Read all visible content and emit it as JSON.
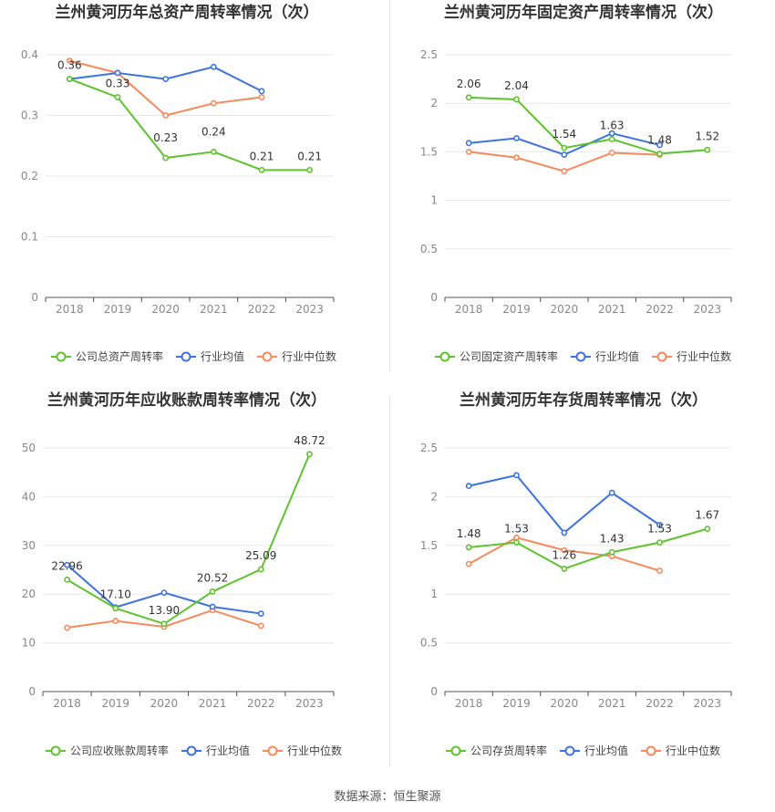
{
  "source_label": "数据来源：恒生聚源",
  "colors": {
    "company": "#5dc32e",
    "avg": "#3d73dd",
    "median": "#f58a5c",
    "grid": "#e8e8e8",
    "axis": "#555555"
  },
  "legend": {
    "avg": "行业均值",
    "median": "行业中位数"
  },
  "chart_data": [
    {
      "type": "line",
      "title": "兰州黄河历年总资产周转率情况（次）",
      "categories": [
        "2018",
        "2019",
        "2020",
        "2021",
        "2022",
        "2023"
      ],
      "ylim": [
        0,
        0.4
      ],
      "yticks": [
        "0",
        "0.1",
        "0.2",
        "0.3",
        "0.4"
      ],
      "series": [
        {
          "name": "公司总资产周转率",
          "values": [
            0.36,
            0.33,
            0.23,
            0.24,
            0.21,
            0.21
          ],
          "labels": [
            "0.36",
            "0.33",
            "0.23",
            "0.24",
            "0.21",
            "0.21"
          ]
        },
        {
          "name": "行业均值",
          "values": [
            0.36,
            0.37,
            0.36,
            0.38,
            0.34,
            null
          ]
        },
        {
          "name": "行业中位数",
          "values": [
            0.39,
            0.37,
            0.3,
            0.32,
            0.33,
            null
          ]
        }
      ],
      "legend_position": "bottom"
    },
    {
      "type": "line",
      "title": "兰州黄河历年固定资产周转率情况（次）",
      "categories": [
        "2018",
        "2019",
        "2020",
        "2021",
        "2022",
        "2023"
      ],
      "ylim": [
        0,
        2.5
      ],
      "yticks": [
        "0",
        "0.5",
        "1",
        "1.5",
        "2",
        "2.5"
      ],
      "series": [
        {
          "name": "公司固定资产周转率",
          "values": [
            2.06,
            2.04,
            1.54,
            1.63,
            1.48,
            1.52
          ],
          "labels": [
            "2.06",
            "2.04",
            "1.54",
            "1.63",
            "1.48",
            "1.52"
          ]
        },
        {
          "name": "行业均值",
          "values": [
            1.59,
            1.64,
            1.47,
            1.69,
            1.57,
            null
          ]
        },
        {
          "name": "行业中位数",
          "values": [
            1.5,
            1.44,
            1.3,
            1.49,
            1.47,
            null
          ]
        }
      ],
      "legend_position": "bottom"
    },
    {
      "type": "line",
      "title": "兰州黄河历年应收账款周转率情况（次）",
      "categories": [
        "2018",
        "2019",
        "2020",
        "2021",
        "2022",
        "2023"
      ],
      "ylim": [
        0,
        50
      ],
      "yticks": [
        "0",
        "10",
        "20",
        "30",
        "40",
        "50"
      ],
      "series": [
        {
          "name": "公司应收账款周转率",
          "values": [
            22.96,
            17.1,
            13.9,
            20.52,
            25.09,
            48.72
          ],
          "labels": [
            "22.96",
            "17.10",
            "13.90",
            "20.52",
            "25.09",
            "48.72"
          ]
        },
        {
          "name": "行业均值",
          "values": [
            26.0,
            17.3,
            20.3,
            17.4,
            16.0,
            null
          ]
        },
        {
          "name": "行业中位数",
          "values": [
            13.1,
            14.5,
            13.3,
            16.7,
            13.5,
            null
          ]
        }
      ],
      "legend_position": "bottom"
    },
    {
      "type": "line",
      "title": "兰州黄河历年存货周转率情况（次）",
      "categories": [
        "2018",
        "2019",
        "2020",
        "2021",
        "2022",
        "2023"
      ],
      "ylim": [
        0,
        2.5
      ],
      "yticks": [
        "0",
        "0.5",
        "1",
        "1.5",
        "2",
        "2.5"
      ],
      "series": [
        {
          "name": "公司存货周转率",
          "values": [
            1.48,
            1.53,
            1.26,
            1.43,
            1.53,
            1.67
          ],
          "labels": [
            "1.48",
            "1.53",
            "1.26",
            "1.43",
            "1.53",
            "1.67"
          ]
        },
        {
          "name": "行业均值",
          "values": [
            2.11,
            2.22,
            1.63,
            2.04,
            1.71,
            null
          ]
        },
        {
          "name": "行业中位数",
          "values": [
            1.31,
            1.58,
            1.45,
            1.39,
            1.24,
            null
          ]
        }
      ],
      "legend_position": "bottom"
    }
  ]
}
